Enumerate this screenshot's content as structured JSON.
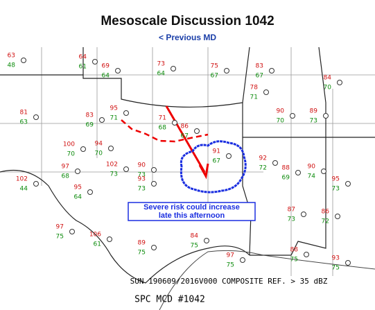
{
  "header": {
    "title": "Mesoscale Discussion 1042",
    "link": "< Previous MD"
  },
  "map": {
    "annotation": "Severe risk could increase late this afternoon",
    "stations": [
      {
        "temp": 63,
        "dew": 48
      },
      {
        "temp": 64,
        "dew": 61
      },
      {
        "temp": 69,
        "dew": 64
      },
      {
        "temp": 73,
        "dew": 64
      },
      {
        "temp": 75,
        "dew": 67
      },
      {
        "temp": 83,
        "dew": 67
      },
      {
        "temp": 84,
        "dew": 70
      },
      {
        "temp": 78,
        "dew": 71
      },
      {
        "temp": 81,
        "dew": 63
      },
      {
        "temp": 83,
        "dew": 69
      },
      {
        "temp": 95,
        "dew": 71
      },
      {
        "temp": 71,
        "dew": 68
      },
      {
        "temp": 86,
        "dew": 67
      },
      {
        "temp": 90,
        "dew": 70
      },
      {
        "temp": 89,
        "dew": 73
      },
      {
        "temp": 100,
        "dew": 70
      },
      {
        "temp": 94,
        "dew": 70
      },
      {
        "temp": 91,
        "dew": 67
      },
      {
        "temp": 92,
        "dew": 72
      },
      {
        "temp": 102,
        "dew": 44
      },
      {
        "temp": 97,
        "dew": 68
      },
      {
        "temp": 102,
        "dew": 73
      },
      {
        "temp": 90,
        "dew": 73
      },
      {
        "temp": 88,
        "dew": 69
      },
      {
        "temp": 90,
        "dew": 74
      },
      {
        "temp": 95,
        "dew": 73
      },
      {
        "temp": 95,
        "dew": 64
      },
      {
        "temp": 93,
        "dew": 73
      },
      {
        "temp": 97,
        "dew": 75
      },
      {
        "temp": 106,
        "dew": 61
      },
      {
        "temp": 89,
        "dew": 75
      },
      {
        "temp": 84,
        "dew": 75
      },
      {
        "temp": 97,
        "dew": 75
      },
      {
        "temp": 88,
        "dew": 75
      },
      {
        "temp": 87,
        "dew": 73
      },
      {
        "temp": 86,
        "dew": 72
      },
      {
        "temp": 93,
        "dew": 75
      }
    ],
    "valid": "SUN 190609/2016V000  COMPOSITE REF. > 35 dBZ",
    "product": "SPC MCD #1042"
  }
}
